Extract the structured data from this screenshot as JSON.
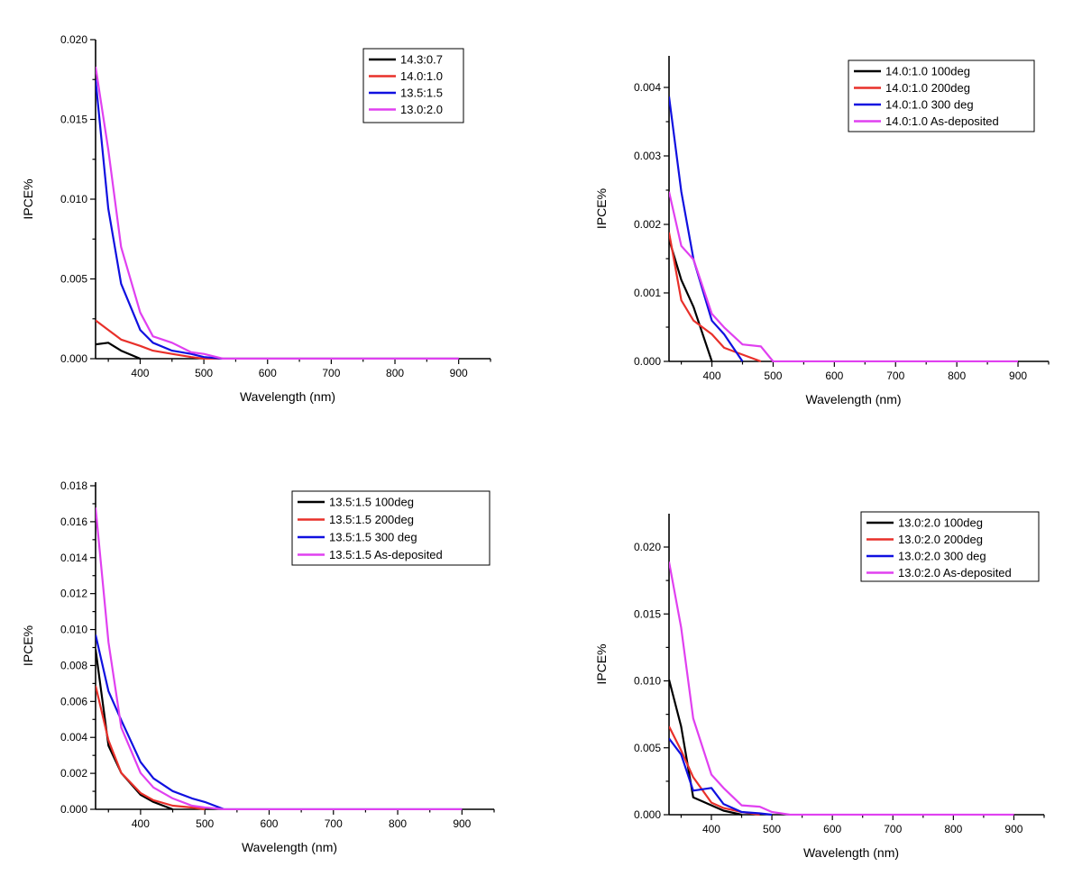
{
  "chart_data": [
    {
      "type": "line",
      "xlabel": "Wavelength (nm)",
      "ylabel": "IPCE%",
      "xlim": [
        330,
        950
      ],
      "ylim": [
        0,
        0.02
      ],
      "xticks": [
        400,
        500,
        600,
        700,
        800,
        900
      ],
      "yticks": [
        "0.000",
        "0.005",
        "0.010",
        "0.015",
        "0.020"
      ],
      "legend": "top-right",
      "series": [
        {
          "name": "14.3:0.7",
          "color": "#000000",
          "x": [
            330,
            350,
            370,
            400
          ],
          "y": [
            0.0009,
            0.001,
            0.0005,
            0.0
          ]
        },
        {
          "name": "14.0:1.0",
          "color": "#e8302a",
          "x": [
            330,
            350,
            370,
            400,
            420,
            450,
            480,
            500,
            530,
            900
          ],
          "y": [
            0.0024,
            0.0018,
            0.0012,
            0.0008,
            0.0005,
            0.0003,
            0.0001,
            0.0,
            0.0,
            0.0
          ]
        },
        {
          "name": "13.5:1.5",
          "color": "#1010e0",
          "x": [
            330,
            350,
            370,
            400,
            420,
            450,
            480,
            500,
            530,
            900
          ],
          "y": [
            0.0175,
            0.0094,
            0.0047,
            0.0018,
            0.001,
            0.0005,
            0.0003,
            0.0001,
            0.0,
            0.0
          ]
        },
        {
          "name": "13.0:2.0",
          "color": "#e040f0",
          "x": [
            330,
            350,
            370,
            400,
            420,
            450,
            480,
            500,
            530,
            900
          ],
          "y": [
            0.0183,
            0.0131,
            0.007,
            0.0029,
            0.0014,
            0.001,
            0.0004,
            0.0003,
            0.0,
            0.0
          ]
        }
      ]
    },
    {
      "type": "line",
      "xlabel": "Wavelength (nm)",
      "ylabel": "IPCE%",
      "xlim": [
        330,
        950
      ],
      "ylim": [
        0,
        0.0045
      ],
      "xticks": [
        400,
        500,
        600,
        700,
        800,
        900
      ],
      "yticks": [
        "0.000",
        "0.001",
        "0.002",
        "0.003",
        "0.004"
      ],
      "legend": "top-right",
      "series": [
        {
          "name": "14.0:1.0 100deg",
          "color": "#000000",
          "x": [
            330,
            350,
            370,
            400
          ],
          "y": [
            0.0018,
            0.0012,
            0.0008,
            0.0
          ]
        },
        {
          "name": "14.0:1.0 200deg",
          "color": "#e8302a",
          "x": [
            330,
            350,
            370,
            400,
            420,
            450,
            480
          ],
          "y": [
            0.0019,
            0.0009,
            0.0006,
            0.0004,
            0.0002,
            0.0001,
            0.0
          ]
        },
        {
          "name": "14.0:1.0 300 deg",
          "color": "#1010e0",
          "x": [
            330,
            350,
            370,
            400,
            420,
            450
          ],
          "y": [
            0.0039,
            0.0025,
            0.0015,
            0.0006,
            0.0004,
            0.0
          ]
        },
        {
          "name": "14.0:1.0 As-deposited",
          "color": "#e040f0",
          "x": [
            330,
            350,
            370,
            400,
            420,
            450,
            480,
            500,
            900
          ],
          "y": [
            0.0025,
            0.0017,
            0.0015,
            0.0007,
            0.0005,
            0.00025,
            0.00022,
            0.0,
            0.0
          ]
        }
      ]
    },
    {
      "type": "line",
      "xlabel": "Wavelength (nm)",
      "ylabel": "IPCE%",
      "xlim": [
        330,
        950
      ],
      "ylim": [
        0,
        0.018
      ],
      "xticks": [
        400,
        500,
        600,
        700,
        800,
        900
      ],
      "yticks": [
        "0.000",
        "0.002",
        "0.004",
        "0.006",
        "0.008",
        "0.010",
        "0.012",
        "0.014",
        "0.016",
        "0.018"
      ],
      "legend": "top-right",
      "series": [
        {
          "name": "13.5:1.5 100deg",
          "color": "#000000",
          "x": [
            330,
            350,
            370,
            400,
            420,
            450
          ],
          "y": [
            0.0088,
            0.0035,
            0.002,
            0.0008,
            0.0004,
            0.0
          ]
        },
        {
          "name": "13.5:1.5 200deg",
          "color": "#e8302a",
          "x": [
            330,
            350,
            370,
            400,
            420,
            450,
            480,
            500
          ],
          "y": [
            0.0068,
            0.0038,
            0.002,
            0.0009,
            0.0005,
            0.0002,
            0.0001,
            0.0
          ]
        },
        {
          "name": "13.5:1.5 300 deg",
          "color": "#1010e0",
          "x": [
            330,
            350,
            370,
            400,
            420,
            450,
            480,
            500,
            530,
            900
          ],
          "y": [
            0.0096,
            0.0065,
            0.0049,
            0.0026,
            0.0017,
            0.001,
            0.0006,
            0.0004,
            0.0,
            0.0
          ]
        },
        {
          "name": "13.5:1.5 As-deposited",
          "color": "#e040f0",
          "x": [
            330,
            350,
            370,
            400,
            420,
            450,
            480,
            500,
            530,
            900
          ],
          "y": [
            0.0166,
            0.0092,
            0.0045,
            0.002,
            0.0012,
            0.0006,
            0.0002,
            0.0001,
            0.0,
            0.0
          ]
        }
      ]
    },
    {
      "type": "line",
      "xlabel": "Wavelength (nm)",
      "ylabel": "IPCE%",
      "xlim": [
        330,
        950
      ],
      "ylim": [
        0,
        0.0225
      ],
      "xticks": [
        400,
        500,
        600,
        700,
        800,
        900
      ],
      "yticks": [
        "0.000",
        "0.005",
        "0.010",
        "0.015",
        "0.020"
      ],
      "legend": "top-right",
      "series": [
        {
          "name": "13.0:2.0 100deg",
          "color": "#000000",
          "x": [
            330,
            350,
            370,
            400,
            420,
            450
          ],
          "y": [
            0.0101,
            0.0066,
            0.0013,
            0.0007,
            0.0003,
            0.0
          ]
        },
        {
          "name": "13.0:2.0 200deg",
          "color": "#e8302a",
          "x": [
            330,
            350,
            370,
            400,
            420,
            450,
            480
          ],
          "y": [
            0.0066,
            0.0048,
            0.0028,
            0.0009,
            0.0005,
            0.0002,
            0.0
          ]
        },
        {
          "name": "13.0:2.0 300 deg",
          "color": "#1010e0",
          "x": [
            330,
            350,
            370,
            385,
            400,
            420,
            450,
            480,
            500
          ],
          "y": [
            0.0057,
            0.0045,
            0.0018,
            0.0019,
            0.002,
            0.0008,
            0.0002,
            0.0001,
            0.0
          ]
        },
        {
          "name": "13.0:2.0 As-deposited",
          "color": "#e040f0",
          "x": [
            330,
            350,
            370,
            400,
            420,
            450,
            480,
            500,
            530,
            900
          ],
          "y": [
            0.0189,
            0.014,
            0.0072,
            0.003,
            0.002,
            0.0007,
            0.0006,
            0.0002,
            0.0,
            0.0
          ]
        }
      ]
    }
  ]
}
